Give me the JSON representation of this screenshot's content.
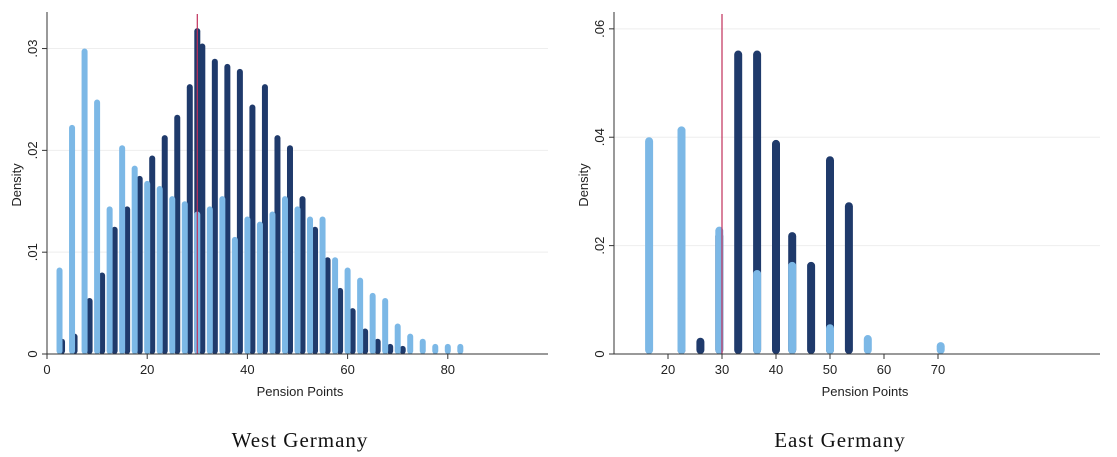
{
  "colors": {
    "dark_series": "#1f3a6b",
    "light_series": "#7cb8e6",
    "reference_line": "#c0305a",
    "axis": "#333333",
    "grid": "#eeeeee"
  },
  "chart_data": [
    {
      "type": "bar",
      "caption": "West Germany",
      "xlabel": "Pension Points",
      "ylabel": "Density",
      "xlim": [
        0,
        100
      ],
      "ylim": [
        0,
        0.033
      ],
      "xticks": [
        0,
        20,
        40,
        60,
        80
      ],
      "yticks": [
        0,
        0.01,
        0.02,
        0.03
      ],
      "ytick_labels": [
        "0",
        ".01",
        ".02",
        ".03"
      ],
      "reference_line_x": 30,
      "grid": true,
      "series": [
        {
          "color_key": "dark_series",
          "points": [
            [
              3,
              0.0015
            ],
            [
              5.5,
              0.002
            ],
            [
              8.5,
              0.0055
            ],
            [
              11,
              0.008
            ],
            [
              13.5,
              0.0125
            ],
            [
              16,
              0.0145
            ],
            [
              18.5,
              0.0175
            ],
            [
              21,
              0.0195
            ],
            [
              23.5,
              0.0215
            ],
            [
              26,
              0.0235
            ],
            [
              28.5,
              0.0265
            ],
            [
              31,
              0.0305
            ],
            [
              30,
              0.032
            ],
            [
              33.5,
              0.029
            ],
            [
              36,
              0.0285
            ],
            [
              38.5,
              0.028
            ],
            [
              41,
              0.0245
            ],
            [
              43.5,
              0.0265
            ],
            [
              46,
              0.0215
            ],
            [
              48.5,
              0.0205
            ],
            [
              51,
              0.0155
            ],
            [
              53.5,
              0.0125
            ],
            [
              56,
              0.0095
            ],
            [
              58.5,
              0.0065
            ],
            [
              61,
              0.0045
            ],
            [
              63.5,
              0.0025
            ],
            [
              66,
              0.0015
            ],
            [
              68.5,
              0.001
            ],
            [
              71,
              0.0008
            ]
          ]
        },
        {
          "color_key": "light_series",
          "points": [
            [
              2.5,
              0.0085
            ],
            [
              5,
              0.0225
            ],
            [
              7.5,
              0.03
            ],
            [
              10,
              0.025
            ],
            [
              12.5,
              0.0145
            ],
            [
              15,
              0.0205
            ],
            [
              17.5,
              0.0185
            ],
            [
              20,
              0.017
            ],
            [
              22.5,
              0.0165
            ],
            [
              25,
              0.0155
            ],
            [
              27.5,
              0.015
            ],
            [
              30,
              0.014
            ],
            [
              32.5,
              0.0145
            ],
            [
              35,
              0.0155
            ],
            [
              37.5,
              0.0115
            ],
            [
              40,
              0.0135
            ],
            [
              42.5,
              0.013
            ],
            [
              45,
              0.014
            ],
            [
              47.5,
              0.0155
            ],
            [
              50,
              0.0145
            ],
            [
              52.5,
              0.0135
            ],
            [
              55,
              0.0135
            ],
            [
              57.5,
              0.0095
            ],
            [
              60,
              0.0085
            ],
            [
              62.5,
              0.0075
            ],
            [
              65,
              0.006
            ],
            [
              67.5,
              0.0055
            ],
            [
              70,
              0.003
            ],
            [
              72.5,
              0.002
            ],
            [
              75,
              0.0015
            ],
            [
              77.5,
              0.001
            ],
            [
              80,
              0.001
            ],
            [
              82.5,
              0.001
            ]
          ]
        }
      ]
    },
    {
      "type": "bar",
      "caption": "East Germany",
      "xlabel": "Pension Points",
      "ylabel": "Density",
      "xlim": [
        10,
        100
      ],
      "ylim": [
        0,
        0.062
      ],
      "xticks": [
        20,
        30,
        40,
        50,
        60,
        70
      ],
      "yticks": [
        0,
        0.02,
        0.04,
        0.06
      ],
      "ytick_labels": [
        "0",
        ".02",
        ".04",
        ".06"
      ],
      "reference_line_x": 30,
      "grid": true,
      "series": [
        {
          "color_key": "dark_series",
          "points": [
            [
              22.5,
              0.011
            ],
            [
              26,
              0.003
            ],
            [
              29.5,
              0.0225
            ],
            [
              33,
              0.056
            ],
            [
              36.5,
              0.056
            ],
            [
              40,
              0.0395
            ],
            [
              43,
              0.0225
            ],
            [
              46.5,
              0.017
            ],
            [
              50,
              0.0365
            ],
            [
              53.5,
              0.028
            ]
          ]
        },
        {
          "color_key": "light_series",
          "points": [
            [
              16.5,
              0.04
            ],
            [
              22.5,
              0.042
            ],
            [
              29.5,
              0.0235
            ],
            [
              36.5,
              0.0155
            ],
            [
              43,
              0.017
            ],
            [
              50,
              0.0055
            ],
            [
              57,
              0.0035
            ],
            [
              70.5,
              0.0022
            ]
          ]
        }
      ]
    }
  ]
}
